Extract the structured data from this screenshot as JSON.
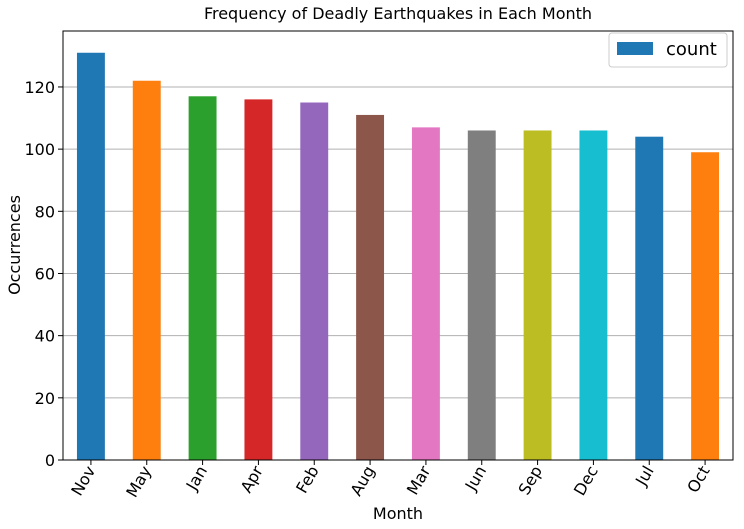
{
  "chart_data": {
    "type": "bar",
    "title": "Frequency of Deadly Earthquakes in Each Month",
    "xlabel": "Month",
    "ylabel": "Occurrences",
    "categories": [
      "Nov",
      "May",
      "Jan",
      "Apr",
      "Feb",
      "Aug",
      "Mar",
      "Jun",
      "Sep",
      "Dec",
      "Jul",
      "Oct"
    ],
    "series": [
      {
        "name": "count",
        "values": [
          131,
          122,
          117,
          116,
          115,
          111,
          107,
          106,
          106,
          106,
          104,
          99
        ]
      }
    ],
    "colors": [
      "#1f77b4",
      "#ff7f0e",
      "#2ca02c",
      "#d62728",
      "#9467bd",
      "#8c564b",
      "#e377c2",
      "#7f7f7f",
      "#bcbd22",
      "#17becf",
      "#1f77b4",
      "#ff7f0e"
    ],
    "legend_color": "#1f77b4",
    "ylim": [
      0,
      138
    ],
    "yticks": [
      0,
      20,
      40,
      60,
      80,
      100,
      120
    ],
    "grid": "horizontal",
    "legend_position": "top-right"
  }
}
